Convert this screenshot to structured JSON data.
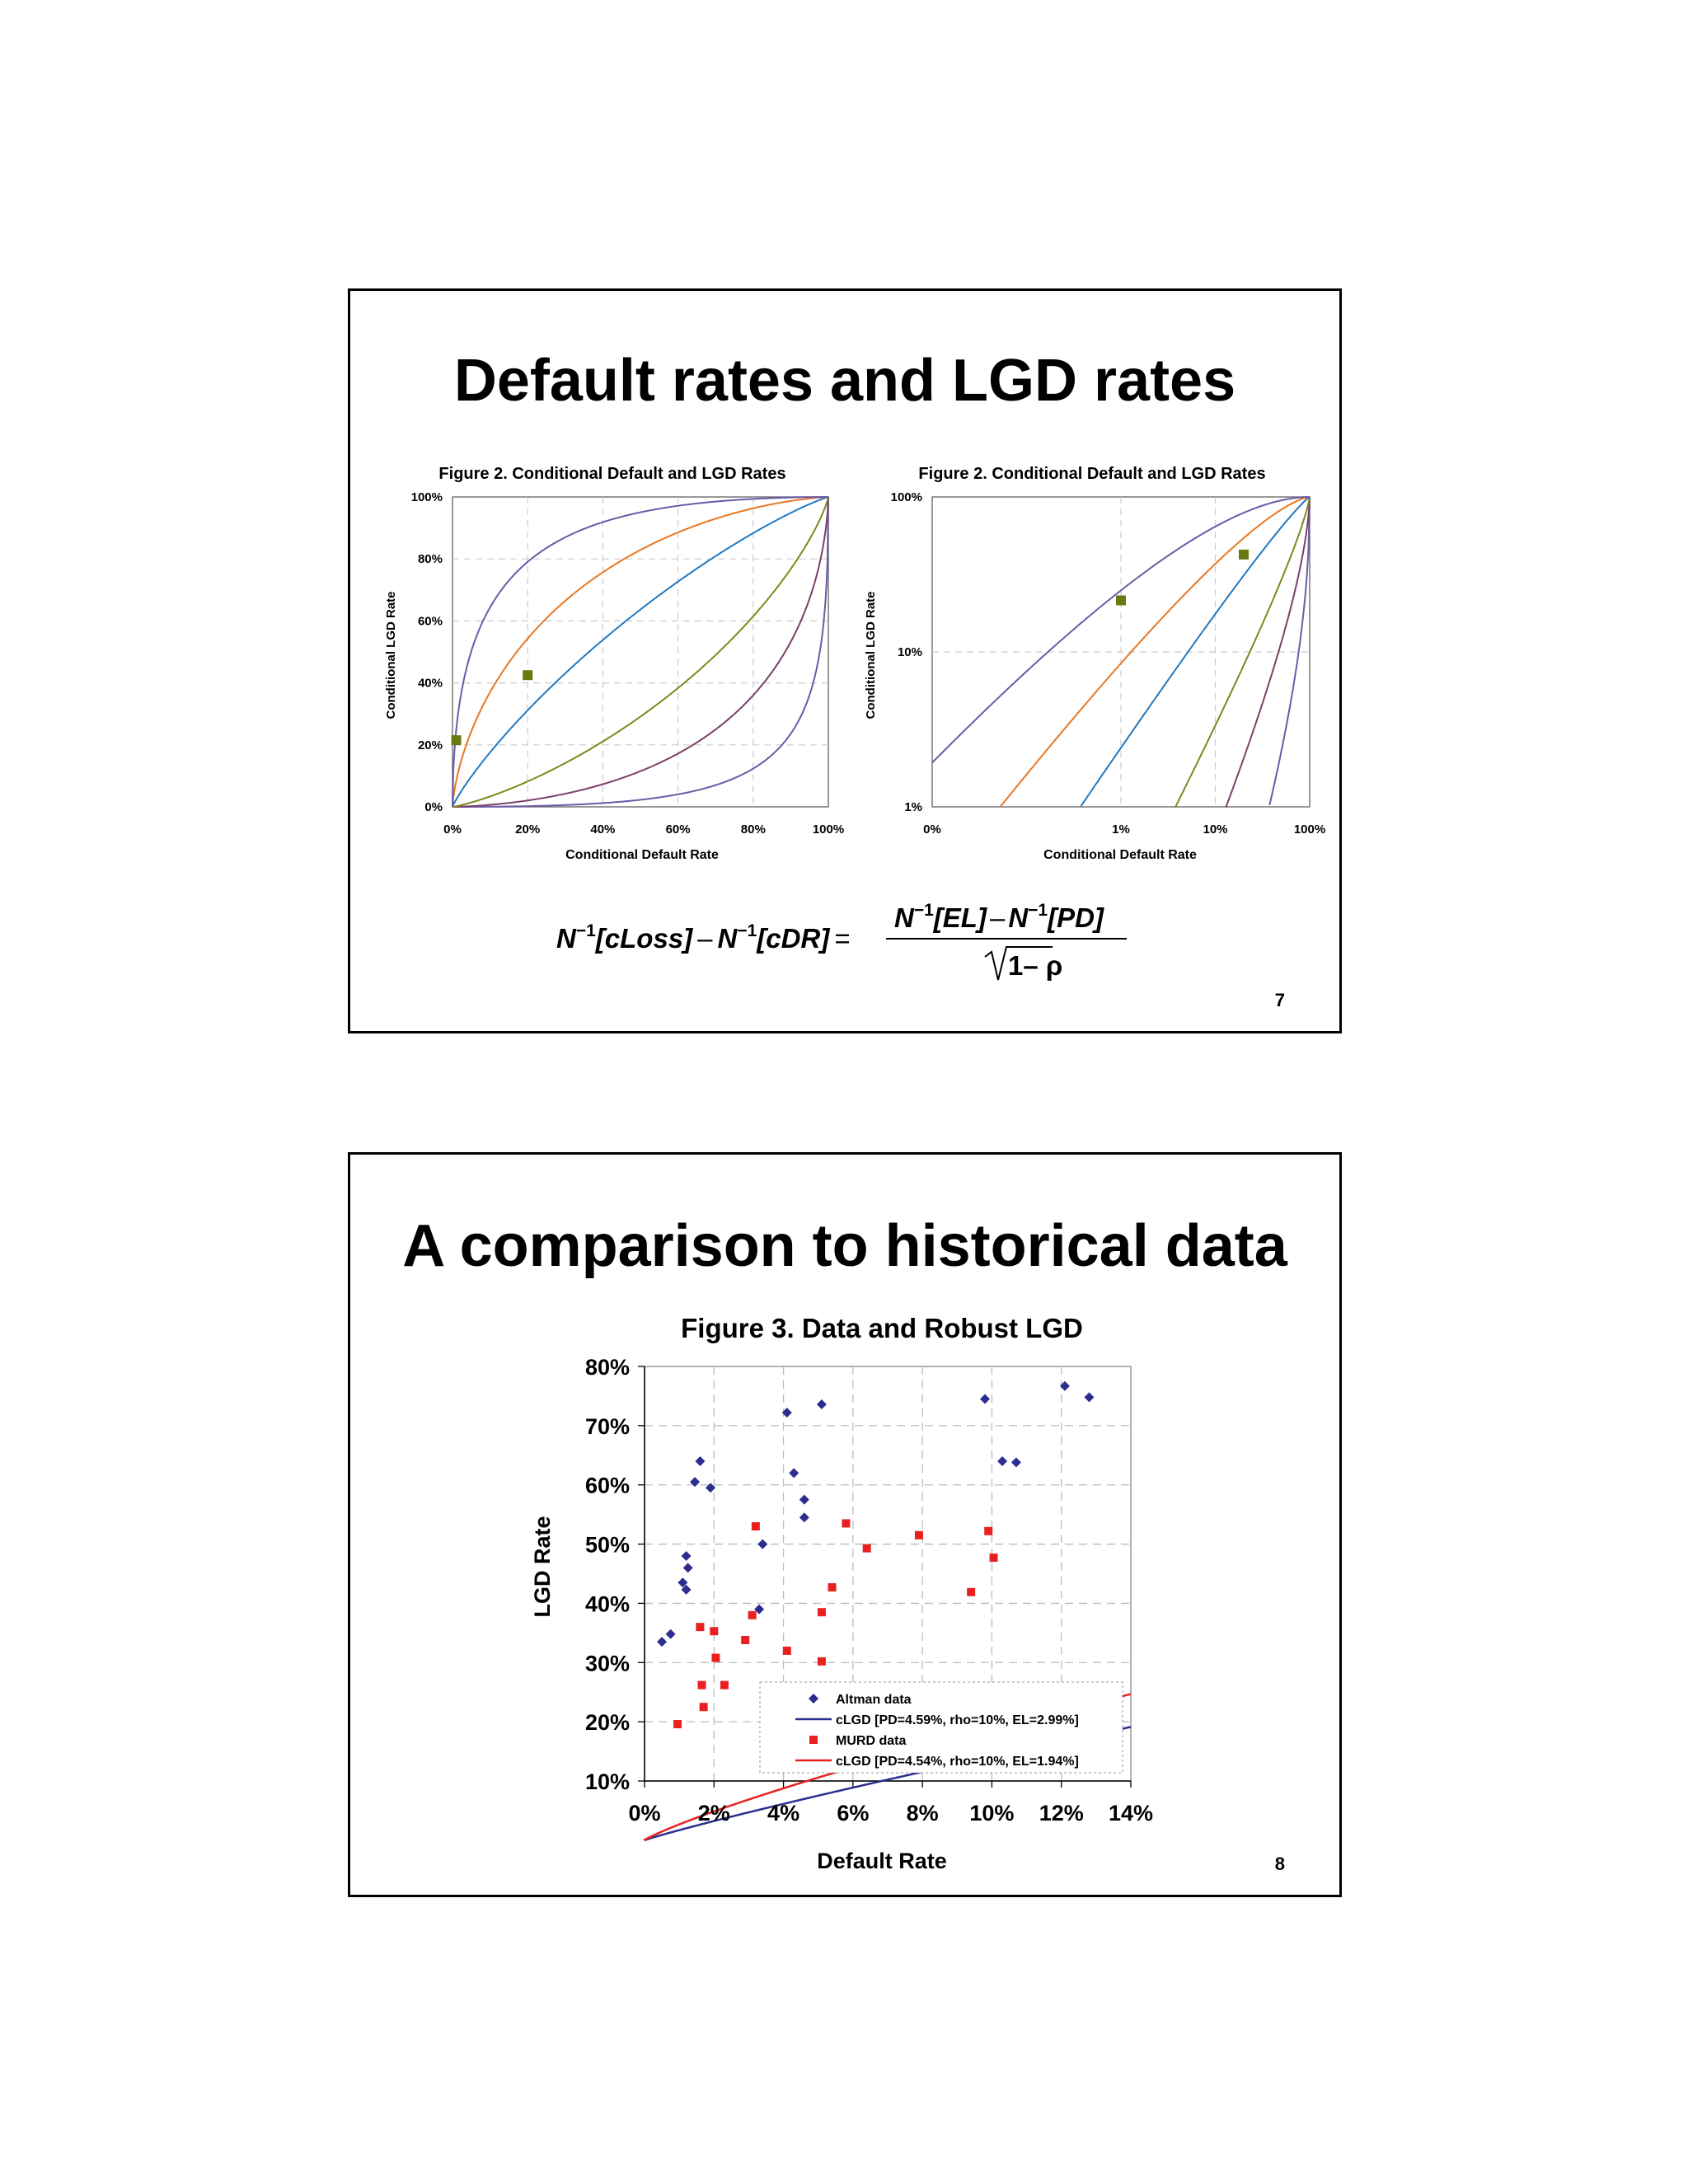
{
  "slide1": {
    "title": "Default rates and LGD rates",
    "page_number": "7",
    "formula": {
      "lhs_a": "N",
      "lhs_a_sup": "−1",
      "lhs_a_arg": "[cLoss]",
      "minus": "–",
      "lhs_b": "N",
      "lhs_b_sup": "−1",
      "lhs_b_arg": "[cDR]",
      "equals": "=",
      "num_a": "N",
      "num_a_sup": "−1",
      "num_a_arg": "[EL]",
      "num_b": "N",
      "num_b_sup": "−1",
      "num_b_arg": "[PD]",
      "den": "1– ρ"
    }
  },
  "slide2": {
    "title": "A comparison to historical data",
    "page_number": "8"
  },
  "colors": {
    "purple": "#6B5AA8",
    "plum": "#7B3F6A",
    "olive": "#7A8A1A",
    "blue": "#2278C0",
    "orange": "#E87722",
    "navy": "#2B2E8F",
    "red": "#E82020",
    "marker_olive": "#6B7A10"
  },
  "chart_data": [
    {
      "id": "fig2-linear",
      "type": "line",
      "title": "Figure 2. Conditional Default and LGD Rates",
      "xlabel": "Conditional Default Rate",
      "ylabel": "Conditional LGD Rate",
      "xlim": [
        0,
        1
      ],
      "ylim": [
        0,
        1
      ],
      "xticks": [
        "0%",
        "20%",
        "40%",
        "60%",
        "80%",
        "100%"
      ],
      "yticks": [
        "0%",
        "20%",
        "40%",
        "60%",
        "80%",
        "100%"
      ],
      "series_k": [
        -2.0,
        -1.2,
        -0.55,
        0.35,
        0.95,
        1.65
      ],
      "markers": [
        {
          "x": 0.01,
          "y": 0.215
        },
        {
          "x": 0.2,
          "y": 0.425
        }
      ]
    },
    {
      "id": "fig2-log",
      "type": "line",
      "title": "Figure 2. Conditional Default and LGD Rates",
      "xlabel": "Conditional Default Rate",
      "ylabel": "Conditional LGD Rate",
      "xscale": "log",
      "yscale": "log",
      "xticks": [
        "0%",
        "1%",
        "10%",
        "100%"
      ],
      "yticks": [
        "1%",
        "10%",
        "100%"
      ],
      "series_k": [
        -2.0,
        -1.2,
        -0.55,
        0.35,
        0.95,
        1.65
      ],
      "markers": [
        {
          "x": 0.01,
          "y": 0.215
        },
        {
          "x": 0.2,
          "y": 0.425
        }
      ]
    },
    {
      "id": "fig3",
      "type": "scatter",
      "title": "Figure 3. Data and Robust LGD",
      "xlabel": "Default Rate",
      "ylabel": "LGD Rate",
      "xlim": [
        0,
        14
      ],
      "ylim": [
        10,
        80
      ],
      "xticks": [
        "0%",
        "2%",
        "4%",
        "6%",
        "8%",
        "10%",
        "12%",
        "14%"
      ],
      "yticks": [
        "10%",
        "20%",
        "30%",
        "40%",
        "50%",
        "60%",
        "70%",
        "80%"
      ],
      "legend": [
        {
          "label": "Altman data"
        },
        {
          "label": "cLGD [PD=4.59%, rho=10%, EL=2.99%]"
        },
        {
          "label": "MURD data"
        },
        {
          "label": "cLGD [PD=4.54%, rho=10%, EL=1.94%]"
        }
      ],
      "series": [
        {
          "name": "Altman data",
          "points": [
            [
              0.5,
              33.5
            ],
            [
              0.75,
              34.8
            ],
            [
              1.1,
              43.5
            ],
            [
              1.2,
              42.3
            ],
            [
              1.2,
              48
            ],
            [
              1.25,
              46
            ],
            [
              1.45,
              60.5
            ],
            [
              1.6,
              64
            ],
            [
              1.9,
              59.5
            ],
            [
              3.3,
              39
            ],
            [
              3.4,
              50
            ],
            [
              4.1,
              72.2
            ],
            [
              4.3,
              62
            ],
            [
              4.6,
              57.5
            ],
            [
              4.6,
              54.5
            ],
            [
              5.1,
              73.6
            ],
            [
              9.8,
              74.5
            ],
            [
              10.3,
              64
            ],
            [
              10.7,
              63.8
            ],
            [
              12.1,
              76.7
            ],
            [
              12.8,
              74.8
            ]
          ]
        },
        {
          "name": "MURD data",
          "points": [
            [
              0.95,
              19.6
            ],
            [
              1.6,
              36
            ],
            [
              1.65,
              26.2
            ],
            [
              1.7,
              22.5
            ],
            [
              2.0,
              35.3
            ],
            [
              2.05,
              30.8
            ],
            [
              2.3,
              26.2
            ],
            [
              2.9,
              33.8
            ],
            [
              3.1,
              38
            ],
            [
              3.2,
              53
            ],
            [
              4.1,
              32
            ],
            [
              5.1,
              38.5
            ],
            [
              5.1,
              30.2
            ],
            [
              5.4,
              42.7
            ],
            [
              5.8,
              53.5
            ],
            [
              6.4,
              49.3
            ],
            [
              7.9,
              51.5
            ],
            [
              9.4,
              41.9
            ],
            [
              9.9,
              52.2
            ],
            [
              10.05,
              47.7
            ]
          ]
        },
        {
          "name": "cLGD [PD=4.59%, rho=10%, EL=2.99%]",
          "PD": 0.0459,
          "rho": 0.1,
          "EL": 0.0299
        },
        {
          "name": "cLGD [PD=4.54%, rho=10%, EL=1.94%]",
          "PD": 0.0454,
          "rho": 0.1,
          "EL": 0.0194
        }
      ]
    }
  ]
}
